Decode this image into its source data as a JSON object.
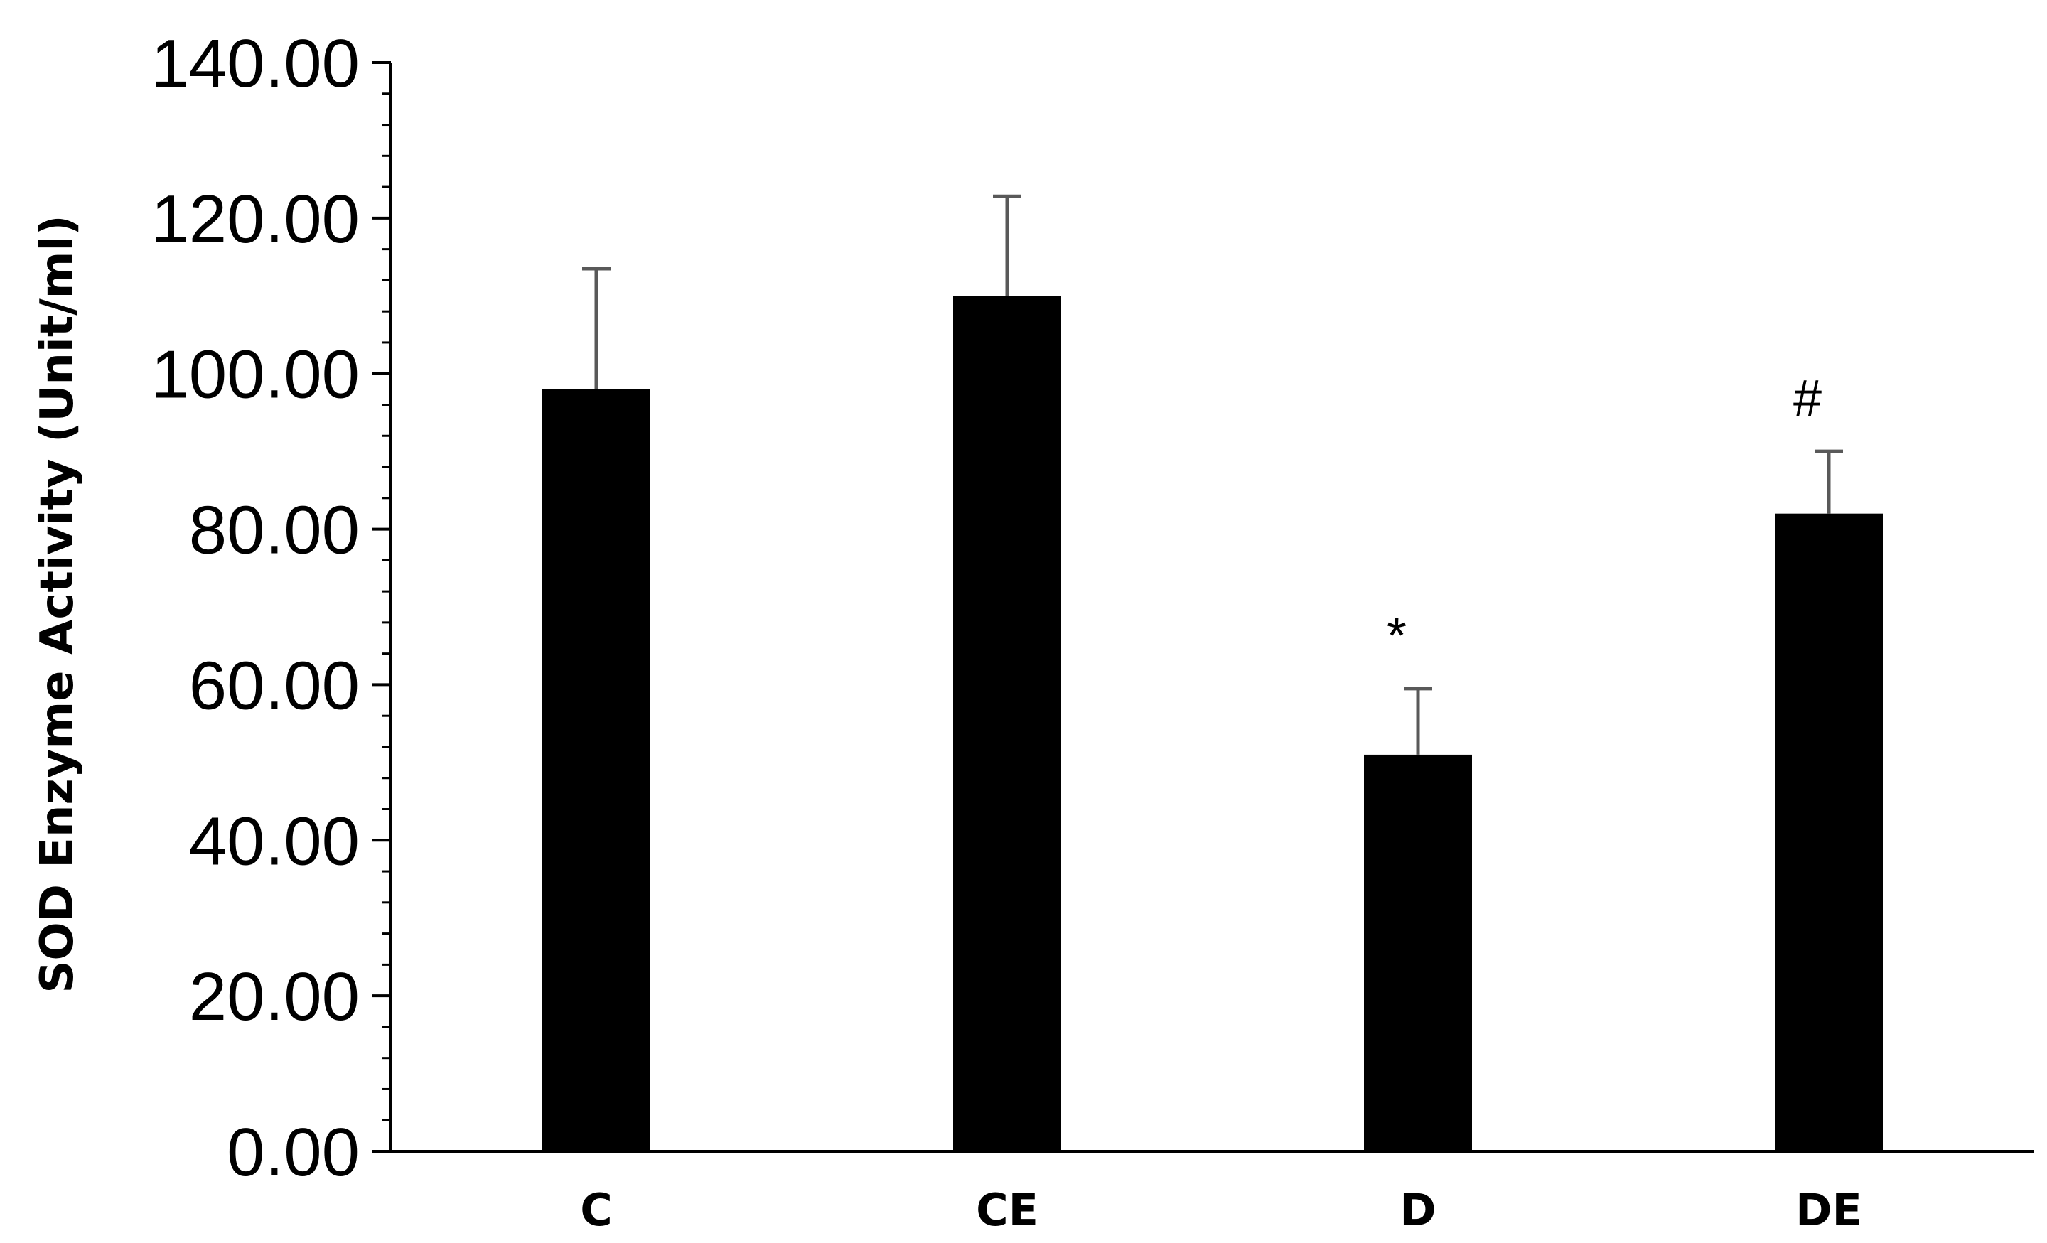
{
  "chart_data": {
    "type": "bar",
    "title": "",
    "xlabel": "",
    "ylabel": "SOD Enzyme Activity (Unit/ml)",
    "categories": [
      "C",
      "CE",
      "D",
      "DE"
    ],
    "values": [
      98.0,
      110.0,
      51.0,
      82.0
    ],
    "error_bars": [
      15.5,
      12.8,
      8.5,
      8.0
    ],
    "annotations": [
      "",
      "",
      "*",
      "#"
    ],
    "ylim": [
      0,
      140
    ],
    "y_ticks": [
      "0.00",
      "20.00",
      "40.00",
      "60.00",
      "80.00",
      "100.00",
      "120.00",
      "140.00"
    ],
    "y_minor_ticks_per_major": 5,
    "grid": false,
    "legend": "none",
    "colors": {
      "bar": "#000000",
      "error_bar": "#595959",
      "axis": "#000000"
    }
  }
}
